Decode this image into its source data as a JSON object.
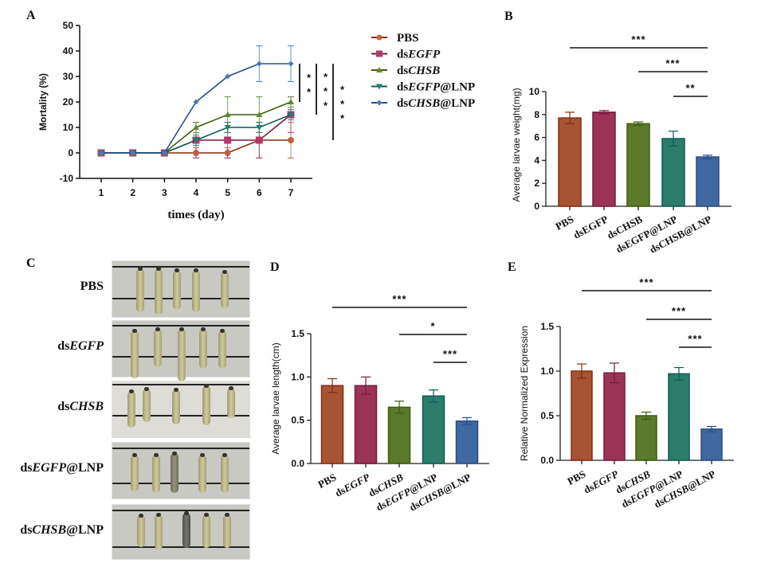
{
  "figure": {
    "groups": [
      "PBS",
      "dsEGFP",
      "dsCHSB",
      "dsEGFP@LNP",
      "dsCHSB@LNP"
    ],
    "group_parts": [
      {
        "pre": "PBS",
        "ital": "",
        "post": ""
      },
      {
        "pre": "ds",
        "ital": "EGFP",
        "post": ""
      },
      {
        "pre": "ds",
        "ital": "CHSB",
        "post": ""
      },
      {
        "pre": "ds",
        "ital": "EGFP",
        "post": "@LNP"
      },
      {
        "pre": "ds",
        "ital": "CHSB",
        "post": "@LNP"
      }
    ],
    "colors": {
      "PBS": "#a65534",
      "dsEGFP": "#9b3456",
      "dsCHSB": "#5a7a2a",
      "dsEGFP@LNP": "#2b7d6a",
      "dsCHSB@LNP": "#3f67a0"
    },
    "line_colors": {
      "PBS": "#8a2a10",
      "dsEGFP": "#7a1840",
      "dsCHSB": "#3f5c10",
      "dsEGFP@LNP": "#0f5c55",
      "dsCHSB@LNP": "#2a4f85"
    },
    "marker_colors": {
      "PBS": "#c0663e",
      "dsEGFP": "#b0386a",
      "dsCHSB": "#5f8a2a",
      "dsEGFP@LNP": "#1f8070",
      "dsCHSB@LNP": "#4a78bd"
    }
  },
  "panel_c": {
    "letter": "C",
    "rows": [
      "PBS",
      "dsEGFP",
      "dsCHSB",
      "dsEGFP@LNP",
      "dsCHSB@LNP"
    ]
  },
  "chart_data": [
    {
      "id": "A",
      "letter": "A",
      "type": "line",
      "title": "",
      "xlabel": "times (day)",
      "ylabel": "Mortality (%)",
      "x": [
        1,
        2,
        3,
        4,
        5,
        6,
        7
      ],
      "ylim": [
        -10,
        50
      ],
      "yticks": [
        -10,
        0,
        10,
        20,
        30,
        40,
        50
      ],
      "legend_position": "right",
      "series": [
        {
          "name": "PBS",
          "marker": "circle",
          "values": [
            0,
            0,
            0,
            0,
            0,
            5,
            5
          ],
          "errors": [
            0,
            0,
            0,
            2,
            2,
            7,
            7
          ]
        },
        {
          "name": "dsEGFP",
          "marker": "square",
          "values": [
            0,
            0,
            0,
            5,
            5,
            5,
            15
          ],
          "errors": [
            0,
            0,
            0,
            7,
            7,
            7,
            7
          ]
        },
        {
          "name": "dsCHSB",
          "marker": "triangle-up",
          "values": [
            0,
            0,
            0,
            10,
            15,
            15,
            20
          ],
          "errors": [
            0,
            0,
            0,
            2,
            7,
            7,
            2
          ]
        },
        {
          "name": "dsEGFP@LNP",
          "marker": "triangle-down",
          "values": [
            0,
            0,
            0,
            5,
            10,
            10,
            15
          ],
          "errors": [
            0,
            0,
            0,
            2,
            2,
            2,
            2
          ]
        },
        {
          "name": "dsCHSB@LNP",
          "marker": "diamond",
          "values": [
            0,
            0,
            0,
            20,
            30,
            35,
            35
          ],
          "errors": [
            0,
            0,
            0,
            0,
            0,
            7,
            7
          ]
        }
      ],
      "significance": [
        {
          "label": "**",
          "span": [
            20,
            35
          ]
        },
        {
          "label": "***",
          "span": [
            15,
            35
          ]
        },
        {
          "label": "***",
          "span": [
            5,
            35
          ]
        }
      ]
    },
    {
      "id": "B",
      "letter": "B",
      "type": "bar",
      "ylabel": "Average larvae weight(mg)",
      "categories": [
        "PBS",
        "dsEGFP",
        "dsCHSB",
        "dsEGFP@LNP",
        "dsCHSB@LNP"
      ],
      "values": [
        7.7,
        8.2,
        7.2,
        5.9,
        4.3
      ],
      "errors": [
        0.5,
        0.15,
        0.15,
        0.65,
        0.15
      ],
      "ylim": [
        0,
        10
      ],
      "yticks": [
        0,
        2,
        4,
        6,
        8,
        10
      ],
      "italic_labels": false,
      "significance": [
        {
          "label": "***",
          "from": 0,
          "to": 4
        },
        {
          "label": "***",
          "from": 2,
          "to": 4
        },
        {
          "label": "**",
          "from": 3,
          "to": 4
        }
      ]
    },
    {
      "id": "D",
      "letter": "D",
      "type": "bar",
      "ylabel": "Average larvae length(cm)",
      "categories": [
        "PBS",
        "dsEGFP",
        "dsCHSB",
        "dsEGFP@LNP",
        "dsCHSB@LNP"
      ],
      "values": [
        0.9,
        0.9,
        0.65,
        0.78,
        0.49
      ],
      "errors": [
        0.08,
        0.1,
        0.07,
        0.07,
        0.04
      ],
      "ylim": [
        0,
        1.5
      ],
      "yticks": [
        0.0,
        0.5,
        1.0,
        1.5
      ],
      "italic_labels": true,
      "significance": [
        {
          "label": "***",
          "from": 0,
          "to": 4
        },
        {
          "label": "*",
          "from": 2,
          "to": 4
        },
        {
          "label": "***",
          "from": 3,
          "to": 4
        }
      ]
    },
    {
      "id": "E",
      "letter": "E",
      "type": "bar",
      "ylabel": "Relative Normalized Expression",
      "categories": [
        "PBS",
        "dsEGFP",
        "dsCHSB",
        "dsEGFP@LNP",
        "dsCHSB@LNP"
      ],
      "values": [
        1.0,
        0.98,
        0.5,
        0.97,
        0.35
      ],
      "errors": [
        0.08,
        0.11,
        0.04,
        0.07,
        0.03
      ],
      "ylim": [
        0,
        1.5
      ],
      "yticks": [
        0.0,
        0.5,
        1.0,
        1.5
      ],
      "italic_labels": true,
      "significance": [
        {
          "label": "***",
          "from": 0,
          "to": 4
        },
        {
          "label": "***",
          "from": 2,
          "to": 4
        },
        {
          "label": "***",
          "from": 3,
          "to": 4
        }
      ]
    }
  ]
}
